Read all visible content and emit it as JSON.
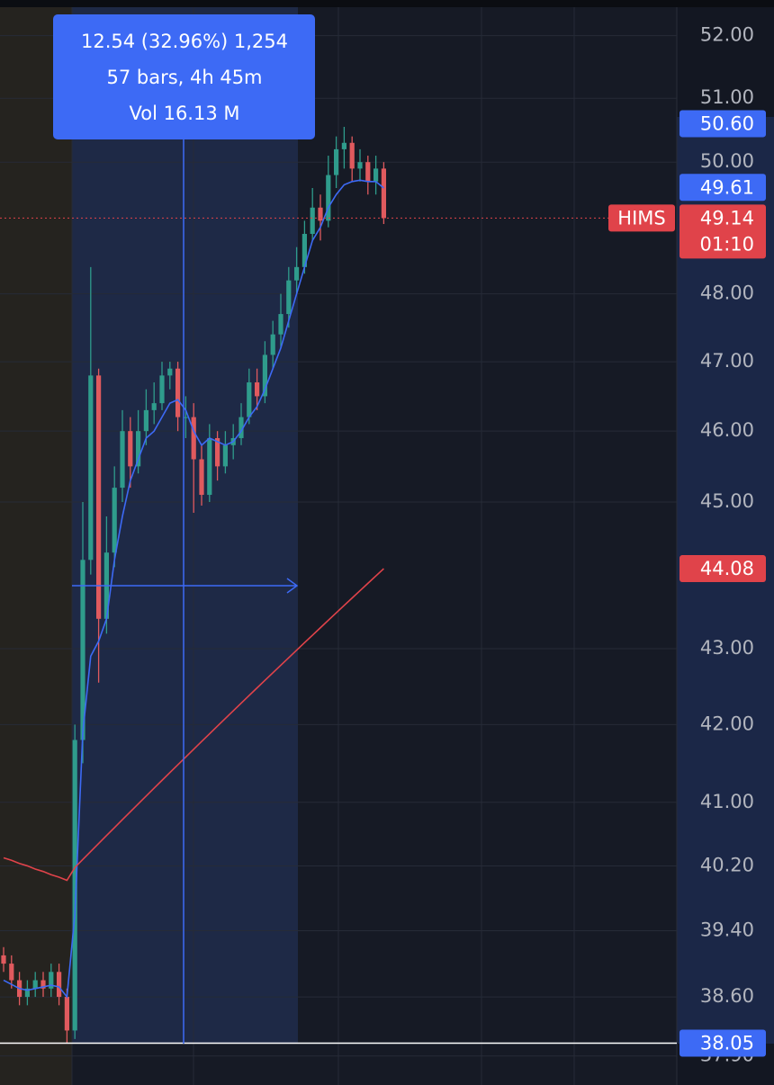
{
  "chart_data": {
    "type": "candlestick",
    "log_scale": true,
    "ylim": [
      37.56,
      52.46
    ],
    "yticks": [
      {
        "value": 52,
        "label": "52.00"
      },
      {
        "value": 51,
        "label": "51.00"
      },
      {
        "value": 50,
        "label": "50.00"
      },
      {
        "value": 48,
        "label": "48.00"
      },
      {
        "value": 47,
        "label": "47.00"
      },
      {
        "value": 46,
        "label": "46.00"
      },
      {
        "value": 45,
        "label": "45.00"
      },
      {
        "value": 43,
        "label": "43.00"
      },
      {
        "value": 42,
        "label": "42.00"
      },
      {
        "value": 41,
        "label": "41.00"
      },
      {
        "value": 40.2,
        "label": "40.20"
      },
      {
        "value": 39.4,
        "label": "39.40"
      },
      {
        "value": 38.6,
        "label": "38.60"
      },
      {
        "value": 37.9,
        "label": "37.90"
      }
    ],
    "grid": true,
    "up_color": "#2f9c8c",
    "down_color": "#e05a5e",
    "candles": {
      "open": [
        39.1,
        39.0,
        38.8,
        38.6,
        38.7,
        38.8,
        38.7,
        38.9,
        38.6,
        38.2,
        41.8,
        44.2,
        46.8,
        43.4,
        44.3,
        45.2,
        46.0,
        45.5,
        46.0,
        46.3,
        46.4,
        46.8,
        46.9,
        46.2,
        46.2,
        45.6,
        45.1,
        45.9,
        45.5,
        45.8,
        45.9,
        46.2,
        46.7,
        46.5,
        47.1,
        47.4,
        47.7,
        48.2,
        48.4,
        48.9,
        49.3,
        49.1,
        49.8,
        50.2,
        50.3,
        49.9,
        50.0,
        49.7,
        49.9
      ],
      "high": [
        39.2,
        39.1,
        38.9,
        38.8,
        38.9,
        38.9,
        39.0,
        39.0,
        38.7,
        42.0,
        45.0,
        48.4,
        46.9,
        44.8,
        45.5,
        46.3,
        46.2,
        46.3,
        46.6,
        46.7,
        47.0,
        47.0,
        47.0,
        46.5,
        46.4,
        45.8,
        46.1,
        46.0,
        46.0,
        46.1,
        46.4,
        46.9,
        46.9,
        47.3,
        47.6,
        48.0,
        48.4,
        48.7,
        49.1,
        49.6,
        49.5,
        50.1,
        50.4,
        50.55,
        50.4,
        50.2,
        50.1,
        50.1,
        50.0
      ],
      "low": [
        38.9,
        38.7,
        38.5,
        38.5,
        38.6,
        38.6,
        38.6,
        38.5,
        38.05,
        38.1,
        41.5,
        44.0,
        42.55,
        43.2,
        44.1,
        45.0,
        45.2,
        45.4,
        45.8,
        46.1,
        46.3,
        46.6,
        46.0,
        45.9,
        44.85,
        44.95,
        45.0,
        45.3,
        45.4,
        45.6,
        45.8,
        46.1,
        46.3,
        46.4,
        46.9,
        47.2,
        47.5,
        48.0,
        48.3,
        48.8,
        48.8,
        49.0,
        49.6,
        49.9,
        49.7,
        49.7,
        49.5,
        49.5,
        49.05
      ],
      "close": [
        39.0,
        38.8,
        38.6,
        38.7,
        38.8,
        38.7,
        38.9,
        38.6,
        38.2,
        41.8,
        44.2,
        46.8,
        43.4,
        44.3,
        45.2,
        46.0,
        45.5,
        46.0,
        46.3,
        46.4,
        46.8,
        46.9,
        46.2,
        46.2,
        45.6,
        45.1,
        45.9,
        45.5,
        45.8,
        45.9,
        46.2,
        46.7,
        46.5,
        47.1,
        47.4,
        47.7,
        48.2,
        48.4,
        48.9,
        49.3,
        49.1,
        49.8,
        50.2,
        50.3,
        49.9,
        50.0,
        49.7,
        49.9,
        49.14
      ]
    },
    "lines": [
      {
        "color": "#3d6af5",
        "values": [
          38.8,
          38.75,
          38.7,
          38.68,
          38.7,
          38.72,
          38.74,
          38.72,
          38.6,
          39.6,
          41.9,
          42.9,
          43.1,
          43.4,
          44.2,
          44.8,
          45.3,
          45.6,
          45.9,
          46.0,
          46.2,
          46.4,
          46.45,
          46.3,
          46.0,
          45.8,
          45.9,
          45.85,
          45.8,
          45.85,
          46.0,
          46.2,
          46.35,
          46.6,
          46.9,
          47.2,
          47.6,
          48.0,
          48.4,
          48.8,
          49.0,
          49.3,
          49.5,
          49.65,
          49.7,
          49.72,
          49.7,
          49.7,
          49.6
        ]
      },
      {
        "color": "#e0434a",
        "values": [
          40.3,
          40.27,
          40.23,
          40.2,
          40.16,
          40.13,
          40.09,
          40.06,
          40.02,
          40.18,
          40.28,
          40.38,
          40.48,
          40.58,
          40.68,
          40.78,
          40.88,
          40.98,
          41.08,
          41.18,
          41.28,
          41.38,
          41.48,
          41.58,
          41.68,
          41.78,
          41.88,
          41.98,
          42.08,
          42.18,
          42.28,
          42.38,
          42.48,
          42.58,
          42.68,
          42.78,
          42.88,
          42.98,
          43.08,
          43.18,
          43.28,
          43.38,
          43.48,
          43.58,
          43.68,
          43.78,
          43.88,
          43.98,
          44.08
        ]
      }
    ],
    "price_labels": [
      {
        "value": 50.6,
        "label": "50.60",
        "color": "#3d6af5"
      },
      {
        "value": 49.61,
        "label": "49.61",
        "color": "#3d6af5"
      },
      {
        "value": 49.14,
        "label": "49.14",
        "color": "#e0434a",
        "tag": "HIMS",
        "countdown": "01:10"
      },
      {
        "value": 44.08,
        "label": "44.08",
        "color": "#e0434a"
      },
      {
        "value": 38.05,
        "label": "38.05",
        "color": "#3d6af5"
      }
    ],
    "measure": {
      "lines": [
        "12.54 (32.96%) 1,254",
        "57 bars, 4h 45m",
        "Vol 16.13 M"
      ],
      "color": "#3d6af5"
    }
  }
}
